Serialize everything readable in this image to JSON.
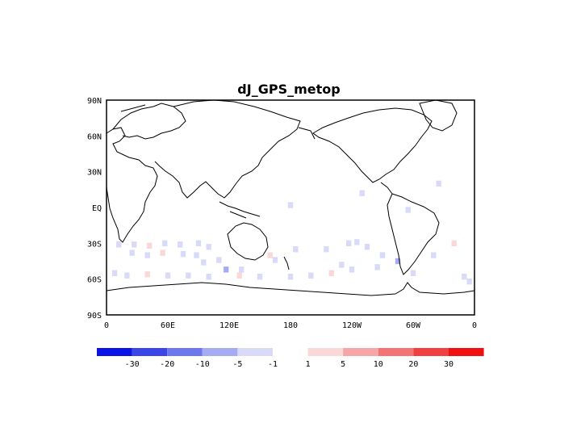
{
  "map": {
    "title": "dJ_GPS_metop",
    "lat_ticks": [
      "90N",
      "60N",
      "30N",
      "EQ",
      "30S",
      "60S",
      "90S"
    ],
    "lon_ticks": [
      "0",
      "60E",
      "120E",
      "180",
      "120W",
      "60W",
      "0"
    ],
    "land_outline_color": "#000000",
    "background": "#ffffff"
  },
  "colorbar": {
    "labels": [
      "-30",
      "-20",
      "-10",
      "-5",
      "-1",
      "1",
      "5",
      "10",
      "20",
      "30"
    ],
    "colors": [
      "#0a14e6",
      "#3c46e6",
      "#6e78ee",
      "#a6acf4",
      "#d8daf8",
      "#ffffff",
      "#fad8d8",
      "#f6a6a6",
      "#f27474",
      "#f04040",
      "#f01010"
    ]
  },
  "chart_data": {
    "type": "heatmap",
    "title": "dJ_GPS_metop",
    "xlabel": "",
    "ylabel": "",
    "x_range_deg_east": [
      0,
      360
    ],
    "y_range_deg_lat": [
      -90,
      90
    ],
    "x_tick_labels": [
      "0",
      "60E",
      "120E",
      "180",
      "120W",
      "60W",
      "0"
    ],
    "y_tick_labels": [
      "90N",
      "60N",
      "30N",
      "EQ",
      "30S",
      "60S",
      "90S"
    ],
    "color_levels": [
      -30,
      -20,
      -10,
      -5,
      -1,
      1,
      5,
      10,
      20,
      30
    ],
    "cells": [
      {
        "lon": 12,
        "lat": -31,
        "v": -2
      },
      {
        "lon": 27,
        "lat": -31,
        "v": -2
      },
      {
        "lon": 42,
        "lat": -32,
        "v": 2
      },
      {
        "lon": 57,
        "lat": -30,
        "v": -2
      },
      {
        "lon": 72,
        "lat": -31,
        "v": -3
      },
      {
        "lon": 90,
        "lat": -30,
        "v": -2
      },
      {
        "lon": 100,
        "lat": -33,
        "v": -3
      },
      {
        "lon": 25,
        "lat": -38,
        "v": -2
      },
      {
        "lon": 40,
        "lat": -40,
        "v": -3
      },
      {
        "lon": 55,
        "lat": -38,
        "v": 2
      },
      {
        "lon": 75,
        "lat": -39,
        "v": -2
      },
      {
        "lon": 88,
        "lat": -40,
        "v": -3
      },
      {
        "lon": 95,
        "lat": -46,
        "v": -2
      },
      {
        "lon": 110,
        "lat": -44,
        "v": -3
      },
      {
        "lon": 117,
        "lat": -52,
        "v": -6
      },
      {
        "lon": 132,
        "lat": -52,
        "v": -3
      },
      {
        "lon": 165,
        "lat": -44,
        "v": -2
      },
      {
        "lon": 185,
        "lat": -35,
        "v": -2
      },
      {
        "lon": 215,
        "lat": -35,
        "v": -3
      },
      {
        "lon": 237,
        "lat": -30,
        "v": -3
      },
      {
        "lon": 245,
        "lat": -29,
        "v": -4
      },
      {
        "lon": 255,
        "lat": -33,
        "v": -2
      },
      {
        "lon": 270,
        "lat": -40,
        "v": -3
      },
      {
        "lon": 265,
        "lat": -50,
        "v": -2
      },
      {
        "lon": 240,
        "lat": -52,
        "v": -3
      },
      {
        "lon": 220,
        "lat": -55,
        "v": 2
      },
      {
        "lon": 200,
        "lat": -57,
        "v": -3
      },
      {
        "lon": 180,
        "lat": -58,
        "v": -2
      },
      {
        "lon": 150,
        "lat": -58,
        "v": -3
      },
      {
        "lon": 130,
        "lat": -57,
        "v": 2
      },
      {
        "lon": 100,
        "lat": -58,
        "v": -2
      },
      {
        "lon": 80,
        "lat": -57,
        "v": -3
      },
      {
        "lon": 60,
        "lat": -57,
        "v": -2
      },
      {
        "lon": 40,
        "lat": -56,
        "v": 2
      },
      {
        "lon": 20,
        "lat": -57,
        "v": -2
      },
      {
        "lon": 8,
        "lat": -55,
        "v": -3
      },
      {
        "lon": 300,
        "lat": -55,
        "v": -3
      },
      {
        "lon": 320,
        "lat": -40,
        "v": -2
      },
      {
        "lon": 340,
        "lat": -30,
        "v": 2
      },
      {
        "lon": 350,
        "lat": -58,
        "v": -2
      },
      {
        "lon": 355,
        "lat": -62,
        "v": -3
      },
      {
        "lon": 180,
        "lat": 2,
        "v": -2
      },
      {
        "lon": 250,
        "lat": 12,
        "v": -2
      },
      {
        "lon": 325,
        "lat": 20,
        "v": -2
      },
      {
        "lon": 295,
        "lat": -2,
        "v": -2
      },
      {
        "lon": 160,
        "lat": -40,
        "v": 3
      },
      {
        "lon": 230,
        "lat": -48,
        "v": -3
      },
      {
        "lon": 285,
        "lat": -45,
        "v": -6
      }
    ]
  }
}
